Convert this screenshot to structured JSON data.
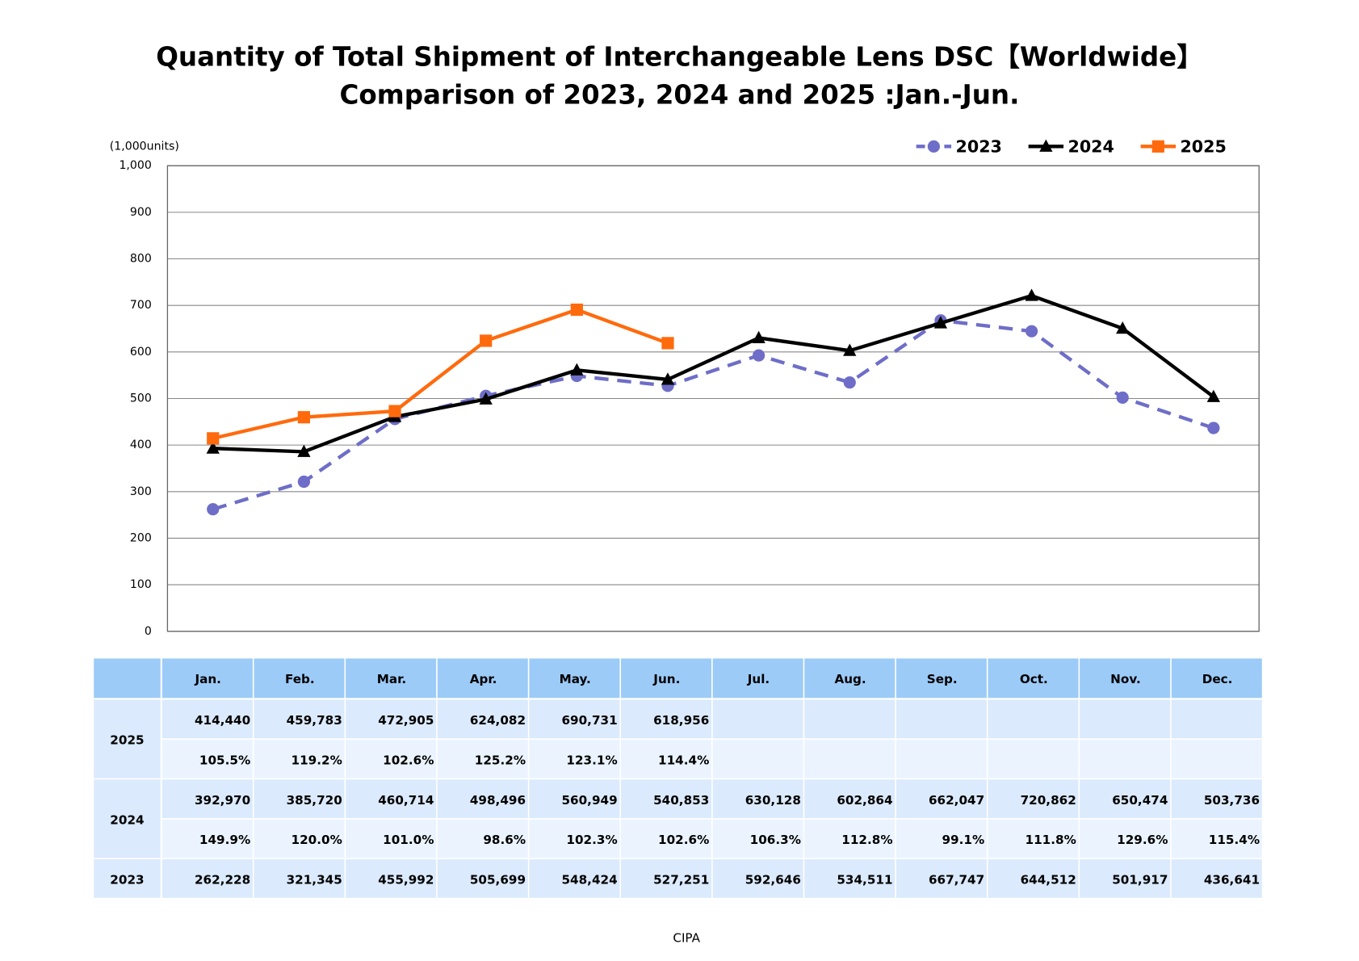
{
  "chart_data": {
    "type": "line",
    "title": [
      "Quantity of Total Shipment of Interchangeable Lens DSC【Worldwide】",
      "Comparison of 2023, 2024 and 2025 :Jan.-Jun."
    ],
    "y_label": "(1,000units)",
    "categories": [
      "Jan.",
      "Feb.",
      "Mar.",
      "Apr.",
      "May.",
      "Jun.",
      "Jul.",
      "Aug.",
      "Sep.",
      "Oct.",
      "Nov.",
      "Dec."
    ],
    "series": [
      {
        "name": "2023",
        "color": "#6e6ec8",
        "dashed": true,
        "marker": "circle",
        "values": [
          262.228,
          321.345,
          455.992,
          505.699,
          548.424,
          527.251,
          592.646,
          534.511,
          667.747,
          644.512,
          501.917,
          436.641
        ]
      },
      {
        "name": "2024",
        "color": "#000000",
        "dashed": false,
        "marker": "triangle",
        "values": [
          392.97,
          385.72,
          460.714,
          498.496,
          560.949,
          540.853,
          630.128,
          602.864,
          662.047,
          720.862,
          650.474,
          503.736
        ]
      },
      {
        "name": "2025",
        "color": "#ff6a0d",
        "dashed": false,
        "marker": "square",
        "values": [
          414.44,
          459.783,
          472.905,
          624.082,
          690.731,
          618.956,
          null,
          null,
          null,
          null,
          null,
          null
        ]
      }
    ],
    "ylim": [
      0,
      1000
    ],
    "yticks": [
      0,
      100,
      200,
      300,
      400,
      500,
      600,
      700,
      800,
      900,
      {
        "value": 1000,
        "label": "1,000"
      }
    ],
    "grid": true,
    "legend": "top-right"
  },
  "table": {
    "groups": [
      {
        "year": "2025",
        "rows": [
          [
            "414,440",
            "459,783",
            "472,905",
            "624,082",
            "690,731",
            "618,956"
          ],
          [
            "105.5%",
            "119.2%",
            "102.6%",
            "125.2%",
            "123.1%",
            "114.4%"
          ]
        ]
      },
      {
        "year": "2024",
        "rows": [
          [
            "392,970",
            "385,720",
            "460,714",
            "498,496",
            "560,949",
            "540,853",
            "630,128",
            "602,864",
            "662,047",
            "720,862",
            "650,474",
            "503,736"
          ],
          [
            "149.9%",
            "120.0%",
            "101.0%",
            "98.6%",
            "102.3%",
            "102.6%",
            "106.3%",
            "112.8%",
            "99.1%",
            "111.8%",
            "129.6%",
            "115.4%"
          ]
        ]
      },
      {
        "year": "2023",
        "rows": [
          [
            "262,228",
            "321,345",
            "455,992",
            "505,699",
            "548,424",
            "527,251",
            "592,646",
            "534,511",
            "667,747",
            "644,512",
            "501,917",
            "436,641"
          ]
        ]
      }
    ]
  },
  "source": "CIPA"
}
